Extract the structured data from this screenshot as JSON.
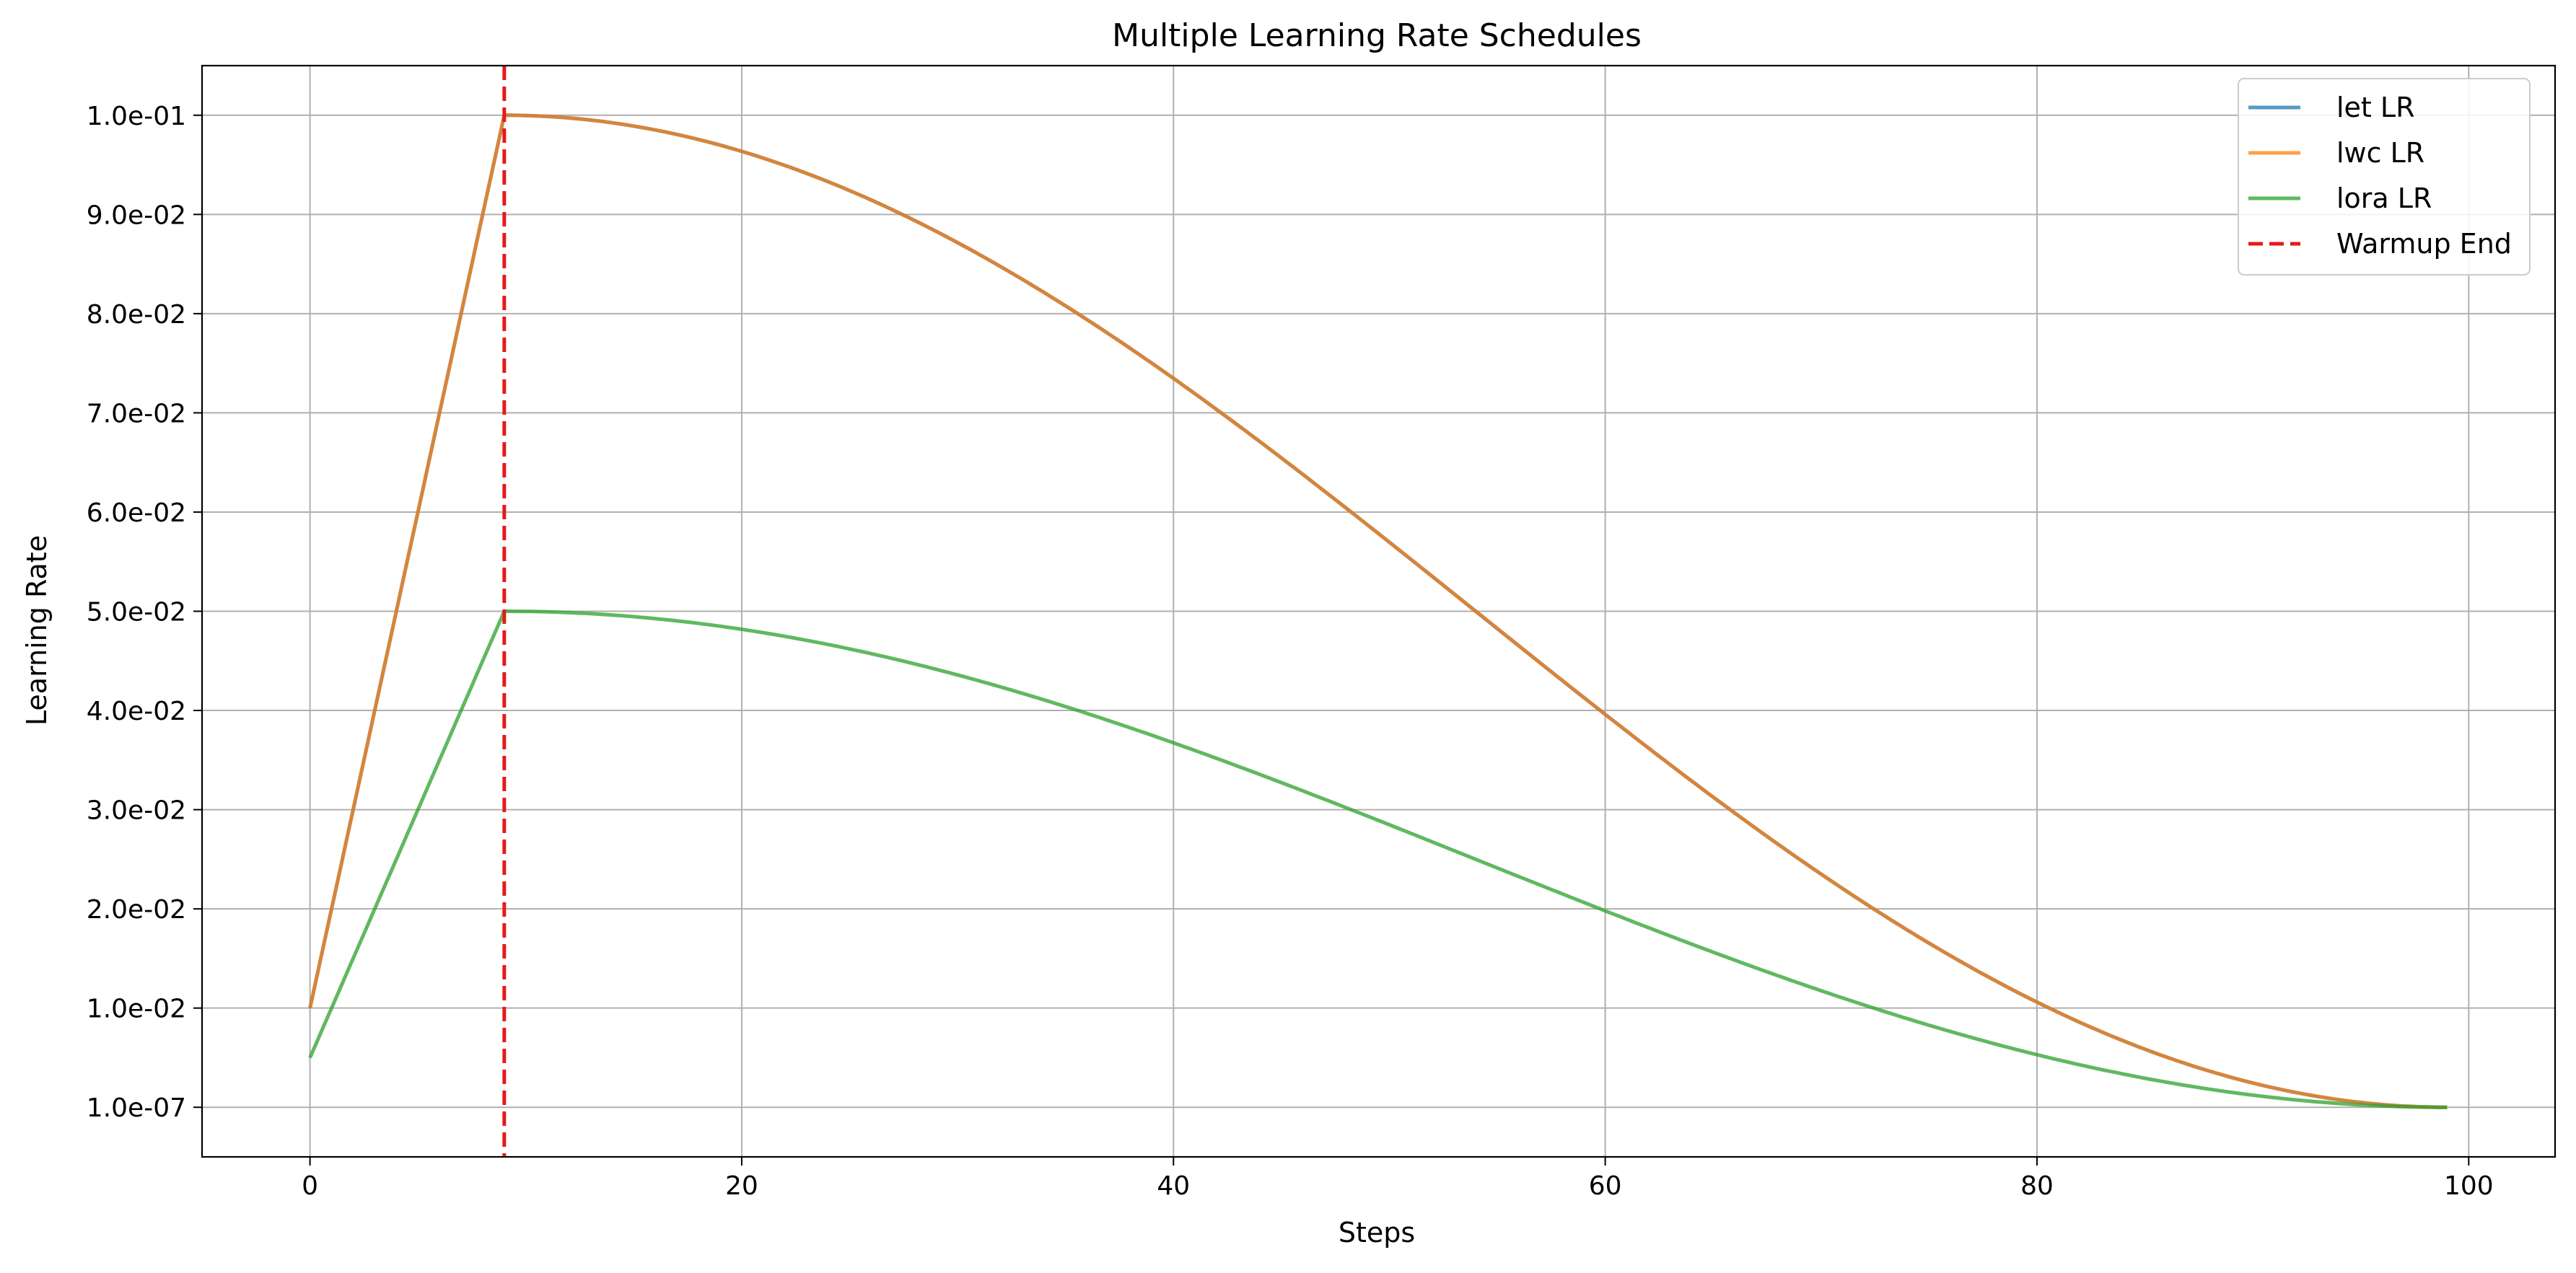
{
  "chart_data": {
    "type": "line",
    "title": "Multiple Learning Rate Schedules",
    "xlabel": "Steps",
    "ylabel": "Learning Rate",
    "xlim": [
      -5,
      104
    ],
    "ylim": [
      -0.005,
      0.105
    ],
    "grid": true,
    "legend_position": "top-right",
    "x_ticks": [
      0,
      20,
      40,
      60,
      80,
      100
    ],
    "x_tick_labels": [
      "0",
      "20",
      "40",
      "60",
      "80",
      "100"
    ],
    "y_ticks": [
      0,
      0.01,
      0.02,
      0.03,
      0.04,
      0.05,
      0.06,
      0.07,
      0.08,
      0.09,
      0.1
    ],
    "y_tick_labels": [
      "1.0e-07",
      "1.0e-02",
      "2.0e-02",
      "3.0e-02",
      "4.0e-02",
      "5.0e-02",
      "6.0e-02",
      "7.0e-02",
      "8.0e-02",
      "9.0e-02",
      "1.0e-01"
    ],
    "x": [
      0,
      9,
      20,
      30,
      40,
      50,
      60,
      70,
      80,
      90,
      99
    ],
    "series": [
      {
        "name": "let LR",
        "color": "#1f77b4",
        "values": [
          0.01,
          0.1,
          0.0963,
          0.0875,
          0.0735,
          0.0565,
          0.0395,
          0.0243,
          0.011,
          0.0025,
          0.0
        ]
      },
      {
        "name": "lwc LR",
        "color": "#ff7f0e",
        "values": [
          0.01,
          0.1,
          0.0963,
          0.0875,
          0.0735,
          0.0565,
          0.0395,
          0.0243,
          0.011,
          0.0025,
          0.0
        ]
      },
      {
        "name": "lora LR",
        "color": "#2ca02c",
        "values": [
          0.005,
          0.05,
          0.0482,
          0.0438,
          0.0368,
          0.0283,
          0.0198,
          0.0122,
          0.0055,
          0.0013,
          0.0
        ]
      }
    ],
    "annotations": [
      {
        "type": "vline",
        "x": 9,
        "label": "Warmup End",
        "color": "#e41a1c",
        "style": "dashed"
      }
    ]
  }
}
